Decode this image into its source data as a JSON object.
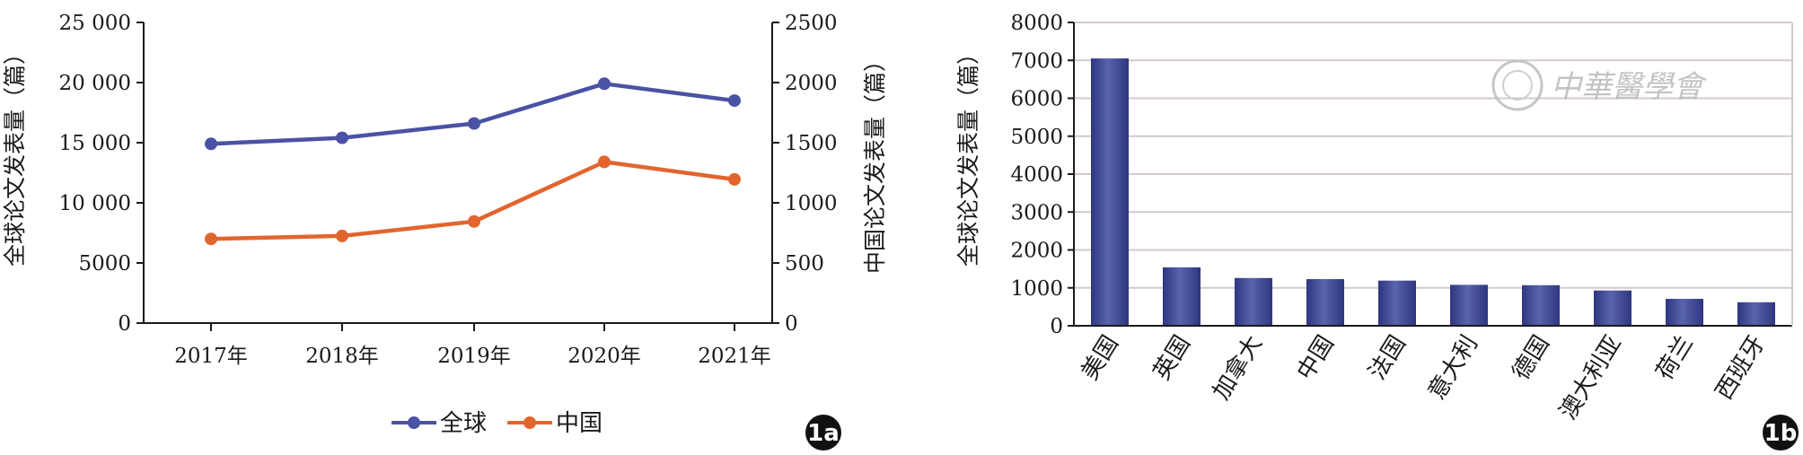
{
  "colors": {
    "global_line": "#4a52a3",
    "china_line": "#e2652e",
    "bar_fill_top": "#5a63ad",
    "bar_fill_bottom": "#2e3680",
    "grid": "#d4c8d2",
    "axis": "#1a1a1a"
  },
  "panel_a": {
    "label": "1a",
    "legend": {
      "global": "全球",
      "china": "中国"
    }
  },
  "panel_b": {
    "label": "1b",
    "watermark_text": "中華醫學會"
  },
  "chart_data": [
    {
      "type": "line",
      "x": [
        "2017年",
        "2018年",
        "2019年",
        "2020年",
        "2021年"
      ],
      "ylabel": "全球论文发表量（篇）",
      "y2label": "中国论文发表量（篇）",
      "ylim": [
        0,
        25000
      ],
      "y2lim": [
        0,
        2500
      ],
      "yticks": [
        "0",
        "5000",
        "10 000",
        "15 000",
        "20 000",
        "25 000"
      ],
      "y2ticks": [
        "0",
        "500",
        "1000",
        "1500",
        "2000",
        "2500"
      ],
      "series": [
        {
          "name": "全球",
          "axis": "left",
          "values": [
            14900,
            15400,
            16600,
            19900,
            18500
          ]
        },
        {
          "name": "中国",
          "axis": "right",
          "values": [
            700,
            725,
            845,
            1340,
            1195
          ]
        }
      ],
      "legend_position": "bottom",
      "grid": false
    },
    {
      "type": "bar",
      "categories": [
        "美国",
        "英国",
        "加拿大",
        "中国",
        "法国",
        "意大利",
        "德国",
        "澳大利亚",
        "荷兰",
        "西班牙"
      ],
      "values": [
        7050,
        1540,
        1260,
        1230,
        1190,
        1080,
        1070,
        930,
        710,
        620
      ],
      "ylabel": "全球论文发表量（篇）",
      "ylim": [
        0,
        8000
      ],
      "yticks": [
        "0",
        "1000",
        "2000",
        "3000",
        "4000",
        "5000",
        "6000",
        "7000",
        "8000"
      ],
      "grid": true
    }
  ]
}
